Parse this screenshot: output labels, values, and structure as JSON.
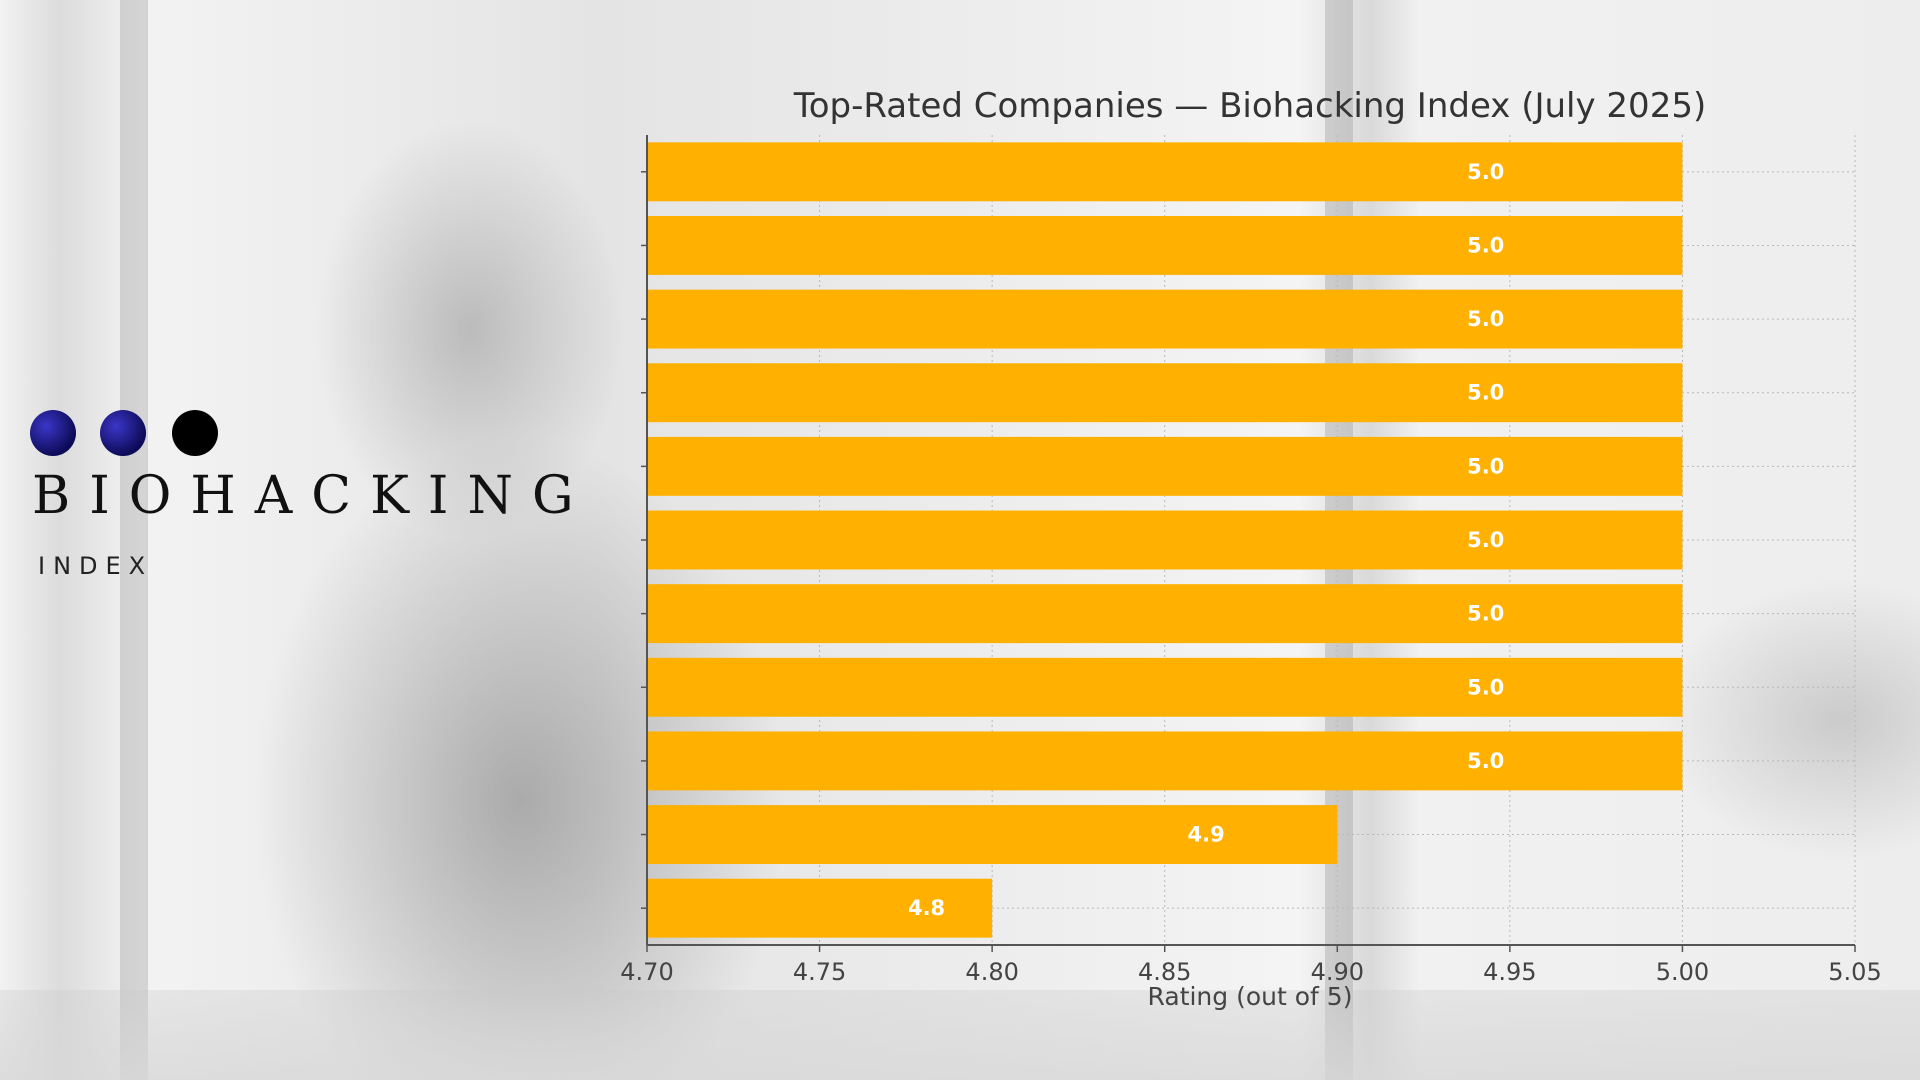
{
  "brand": {
    "title": "BIOHACKING",
    "subtitle": "INDEX"
  },
  "chart_data": {
    "type": "bar",
    "orientation": "horizontal",
    "title": "Top-Rated Companies — Biohacking Index (July 2025)",
    "xlabel": "Rating (out of 5)",
    "ylabel": "",
    "xlim": [
      4.7,
      5.05
    ],
    "xticks": [
      "4.70",
      "4.75",
      "4.80",
      "4.85",
      "4.90",
      "4.95",
      "5.00",
      "5.05"
    ],
    "values": [
      5.0,
      5.0,
      5.0,
      5.0,
      5.0,
      5.0,
      5.0,
      5.0,
      5.0,
      4.9,
      4.8
    ],
    "labels": [
      "5.0",
      "5.0",
      "5.0",
      "5.0",
      "5.0",
      "5.0",
      "5.0",
      "5.0",
      "5.0",
      "4.9",
      "4.8"
    ],
    "grid": true,
    "bar_color": "#FFB000",
    "label_color": "#FFFFFF"
  }
}
